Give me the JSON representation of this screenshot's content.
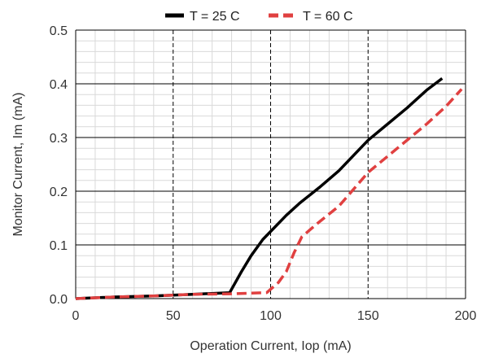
{
  "chart_data": {
    "type": "line",
    "title": "",
    "xlabel": "Operation Current, Iop (mA)",
    "ylabel": "Monitor Current, Im (mA)",
    "xlim": [
      0,
      200
    ],
    "ylim": [
      0,
      0.5
    ],
    "x_ticks": [
      "0",
      "50",
      "100",
      "150",
      "200"
    ],
    "y_ticks": [
      "0.0",
      "0.1",
      "0.2",
      "0.3",
      "0.4",
      "0.5"
    ],
    "grid": {
      "major": true,
      "minor": true
    },
    "legend_position": "top",
    "series": [
      {
        "name": "T = 25 C",
        "color": "#000000",
        "style": "solid",
        "points": [
          [
            0,
            0
          ],
          [
            20,
            0.003
          ],
          [
            40,
            0.005
          ],
          [
            60,
            0.008
          ],
          [
            79,
            0.011
          ],
          [
            85,
            0.05
          ],
          [
            90,
            0.08
          ],
          [
            96,
            0.11
          ],
          [
            100,
            0.125
          ],
          [
            108,
            0.155
          ],
          [
            115,
            0.178
          ],
          [
            125,
            0.207
          ],
          [
            135,
            0.238
          ],
          [
            150,
            0.295
          ],
          [
            160,
            0.325
          ],
          [
            170,
            0.355
          ],
          [
            180,
            0.388
          ],
          [
            188,
            0.41
          ]
        ]
      },
      {
        "name": "T = 60 C",
        "color": "#e04040",
        "style": "dashed",
        "points": [
          [
            0,
            0
          ],
          [
            20,
            0.003
          ],
          [
            40,
            0.005
          ],
          [
            60,
            0.008
          ],
          [
            80,
            0.009
          ],
          [
            98,
            0.011
          ],
          [
            104,
            0.03
          ],
          [
            108,
            0.05
          ],
          [
            112,
            0.085
          ],
          [
            116,
            0.115
          ],
          [
            124,
            0.14
          ],
          [
            135,
            0.172
          ],
          [
            150,
            0.235
          ],
          [
            165,
            0.28
          ],
          [
            180,
            0.325
          ],
          [
            190,
            0.358
          ],
          [
            198,
            0.39
          ]
        ]
      }
    ]
  }
}
